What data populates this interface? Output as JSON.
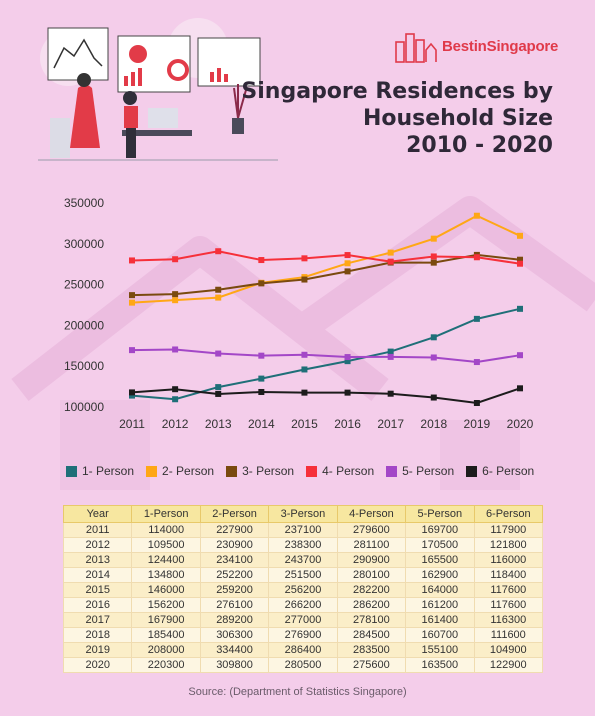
{
  "brand": {
    "name": "BestinSingapore"
  },
  "title_lines": [
    "Singapore Residences by",
    "Household Size",
    "2010 - 2020"
  ],
  "chart_data": {
    "type": "line",
    "x": [
      2011,
      2012,
      2013,
      2014,
      2015,
      2016,
      2017,
      2018,
      2019,
      2020
    ],
    "ylim": [
      100000,
      350000
    ],
    "yticks": [
      100000,
      150000,
      200000,
      250000,
      300000,
      350000
    ],
    "legend_position": "bottom",
    "grid": false,
    "series": [
      {
        "name": "1- Person",
        "color": "#1f6f78",
        "values": [
          114000,
          109500,
          124400,
          134800,
          146000,
          156200,
          167900,
          185400,
          208000,
          220300
        ]
      },
      {
        "name": "2- Person",
        "color": "#ffa716",
        "values": [
          227900,
          230900,
          234100,
          252200,
          259200,
          276100,
          289200,
          306300,
          334400,
          309800
        ]
      },
      {
        "name": "3- Person",
        "color": "#7a4a0f",
        "values": [
          237100,
          238300,
          243700,
          251500,
          256200,
          266200,
          277000,
          276900,
          286400,
          280500
        ]
      },
      {
        "name": "4- Person",
        "color": "#f6303a",
        "values": [
          279600,
          281100,
          290900,
          280100,
          282200,
          286200,
          278100,
          284500,
          283500,
          275600
        ]
      },
      {
        "name": "5- Person",
        "color": "#a347c7",
        "values": [
          169700,
          170500,
          165500,
          162900,
          164000,
          161200,
          161400,
          160700,
          155100,
          163500
        ]
      },
      {
        "name": "6- Person",
        "color": "#1c1c1c",
        "values": [
          117900,
          121800,
          116000,
          118400,
          117600,
          117600,
          116300,
          111600,
          104900,
          122900
        ]
      }
    ]
  },
  "table": {
    "headers": [
      "Year",
      "1-Person",
      "2-Person",
      "3-Person",
      "4-Person",
      "5-Person",
      "6-Person"
    ],
    "rows": [
      [
        "2011",
        "114000",
        "227900",
        "237100",
        "279600",
        "169700",
        "117900"
      ],
      [
        "2012",
        "109500",
        "230900",
        "238300",
        "281100",
        "170500",
        "121800"
      ],
      [
        "2013",
        "124400",
        "234100",
        "243700",
        "290900",
        "165500",
        "116000"
      ],
      [
        "2014",
        "134800",
        "252200",
        "251500",
        "280100",
        "162900",
        "118400"
      ],
      [
        "2015",
        "146000",
        "259200",
        "256200",
        "282200",
        "164000",
        "117600"
      ],
      [
        "2016",
        "156200",
        "276100",
        "266200",
        "286200",
        "161200",
        "117600"
      ],
      [
        "2017",
        "167900",
        "289200",
        "277000",
        "278100",
        "161400",
        "116300"
      ],
      [
        "2018",
        "185400",
        "306300",
        "276900",
        "284500",
        "160700",
        "111600"
      ],
      [
        "2019",
        "208000",
        "334400",
        "286400",
        "283500",
        "155100",
        "104900"
      ],
      [
        "2020",
        "220300",
        "309800",
        "280500",
        "275600",
        "163500",
        "122900"
      ]
    ]
  },
  "source": "Source: (Department of Statistics Singapore)"
}
